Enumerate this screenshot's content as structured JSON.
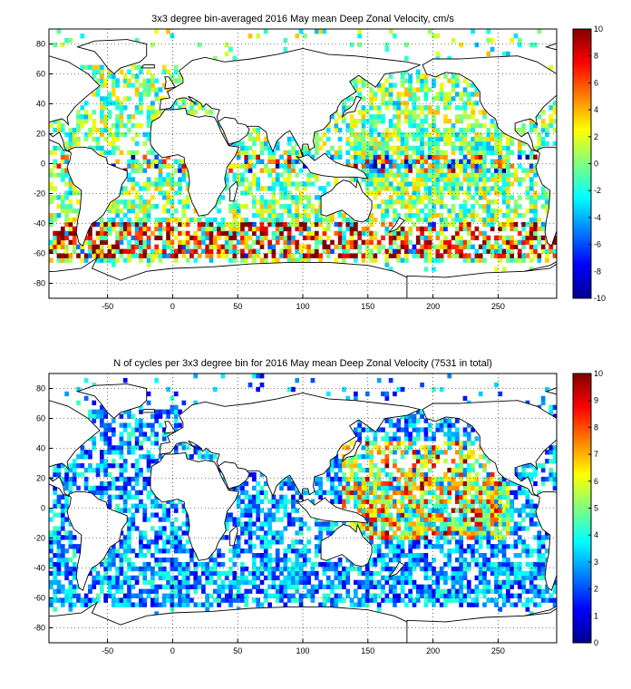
{
  "figure": {
    "charts": [
      {
        "title": "3x3 degree bin-averaged 2016 May mean Deep Zonal Velocity, cm/s",
        "colorbar_label": ""
      },
      {
        "title": "N of cycles per 3x3 degree bin for 2016 May mean Deep Zonal Velocity (7531 in total)",
        "colorbar_label": ""
      }
    ]
  },
  "chart_data": [
    {
      "type": "heatmap",
      "title": "3x3 degree bin-averaged 2016 May mean Deep Zonal Velocity, cm/s",
      "xlabel": "",
      "ylabel": "",
      "xlim": [
        -95,
        295
      ],
      "ylim": [
        -90,
        90
      ],
      "x_ticks": [
        -50,
        0,
        50,
        100,
        150,
        200,
        250
      ],
      "y_ticks": [
        -80,
        -60,
        -40,
        -20,
        0,
        20,
        40,
        60,
        80
      ],
      "grid": true,
      "colormap": "jet",
      "colorbar": {
        "min": -10,
        "max": 10,
        "ticks": [
          -10,
          -8,
          -6,
          -4,
          -2,
          0,
          2,
          4,
          6,
          8,
          10
        ]
      },
      "bin_size_deg": 3,
      "seed": 11
    },
    {
      "type": "heatmap",
      "title": "N of cycles per 3x3 degree bin for 2016 May mean Deep Zonal Velocity (7531 in total)",
      "xlabel": "",
      "ylabel": "",
      "xlim": [
        -95,
        295
      ],
      "ylim": [
        -90,
        90
      ],
      "x_ticks": [
        -50,
        0,
        50,
        100,
        150,
        200,
        250
      ],
      "y_ticks": [
        -80,
        -60,
        -40,
        -20,
        0,
        20,
        40,
        60,
        80
      ],
      "grid": true,
      "colormap": "jet",
      "colorbar": {
        "min": 0,
        "max": 10,
        "ticks": [
          0,
          1,
          2,
          3,
          4,
          5,
          6,
          7,
          8,
          9,
          10
        ]
      },
      "bin_size_deg": 3,
      "total_cycles": 7531,
      "seed": 23
    }
  ]
}
